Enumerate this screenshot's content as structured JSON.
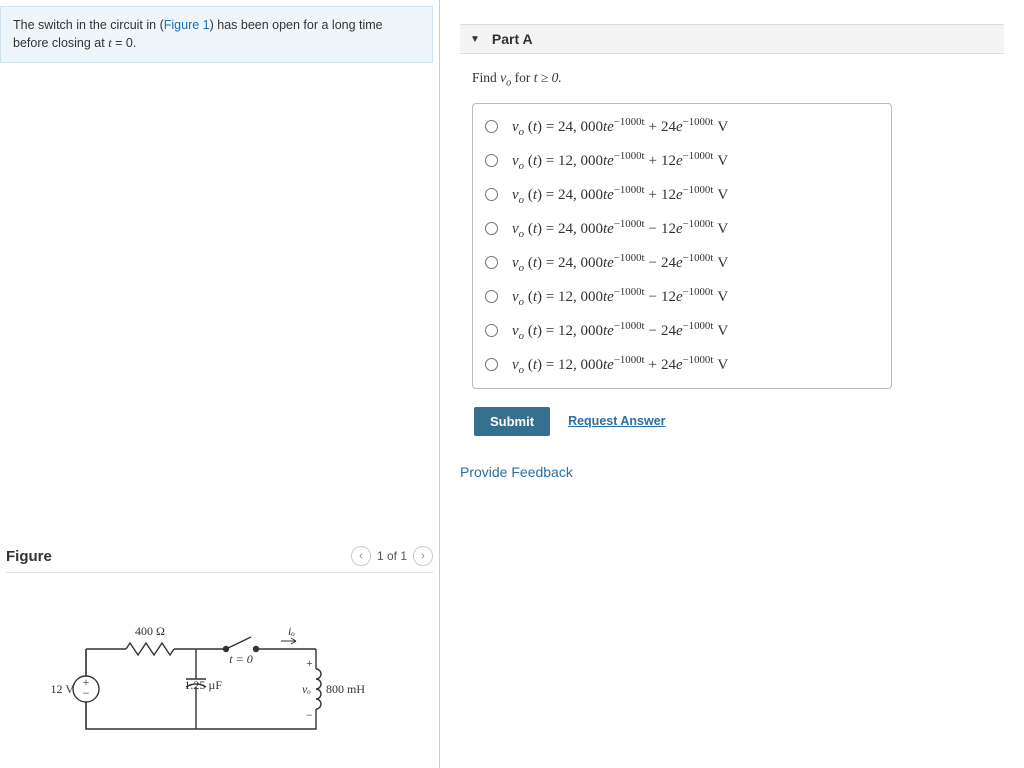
{
  "prompt": {
    "pre": "The switch in the circuit in (",
    "figlink": "Figure 1",
    "post": ") has been open for a long time before closing at ",
    "tvar": "t",
    "eqzero": " = 0."
  },
  "figure": {
    "heading": "Figure",
    "pager": "1 of 1",
    "labels": {
      "source": "12 V",
      "resistor": "400 Ω",
      "cap": "1.25 µF",
      "teq": "t = 0",
      "io": "iₒ",
      "vo": "vₒ",
      "ind": "800 mH",
      "plus": "+",
      "minus": "−"
    }
  },
  "part": {
    "label": "Part A",
    "find_pre": "Find ",
    "find_var": "v",
    "find_sub": "o",
    "find_post": " for ",
    "find_cond": "t ≥ 0.",
    "options": [
      {
        "coef": "24, 000",
        "sign": "+",
        "c2": "24"
      },
      {
        "coef": "12, 000",
        "sign": "+",
        "c2": "12"
      },
      {
        "coef": "24, 000",
        "sign": "+",
        "c2": "12"
      },
      {
        "coef": "24, 000",
        "sign": "−",
        "c2": "12"
      },
      {
        "coef": "24, 000",
        "sign": "−",
        "c2": "24"
      },
      {
        "coef": "12, 000",
        "sign": "−",
        "c2": "12"
      },
      {
        "coef": "12, 000",
        "sign": "−",
        "c2": "24"
      },
      {
        "coef": "12, 000",
        "sign": "+",
        "c2": "24"
      }
    ],
    "exp": "−1000t",
    "unit": "V",
    "submit": "Submit",
    "request": "Request Answer"
  },
  "feedback": "Provide Feedback",
  "colors": {
    "link": "#2a6fa7",
    "submit_bg": "#36708f",
    "prompt_bg": "#eef6fb"
  }
}
